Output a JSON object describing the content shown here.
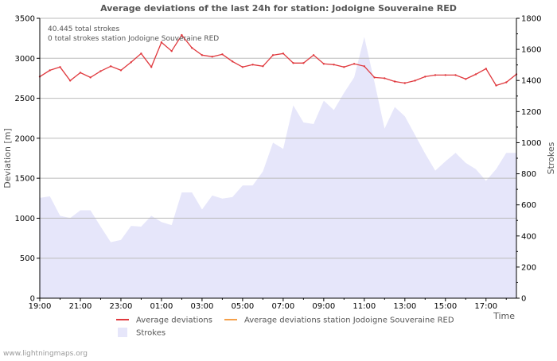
{
  "chart_data": {
    "type": "line",
    "title": "Average deviations of the last 24h for station: Jodoigne Souveraine RED",
    "annotations": [
      "40.445 total strokes",
      "0 total strokes station Jodoigne Souveraine RED"
    ],
    "xlabel": "Time",
    "ylabel_left": "Deviation  [m]",
    "ylabel_right": "Strokes",
    "ylim_left": [
      0,
      3500
    ],
    "ylim_right": [
      0,
      1800
    ],
    "yticks_left": [
      0,
      500,
      1000,
      1500,
      2000,
      2500,
      3000,
      3500
    ],
    "yticks_right": [
      0,
      200,
      400,
      600,
      800,
      1000,
      1200,
      1400,
      1600,
      1800
    ],
    "xlim": [
      0,
      23.5
    ],
    "xticks": [
      {
        "x": 0,
        "label": "19:00"
      },
      {
        "x": 2,
        "label": "21:00"
      },
      {
        "x": 4,
        "label": "23:00"
      },
      {
        "x": 6,
        "label": "01:00"
      },
      {
        "x": 8,
        "label": "03:00"
      },
      {
        "x": 10,
        "label": "05:00"
      },
      {
        "x": 12,
        "label": "07:00"
      },
      {
        "x": 14,
        "label": "09:00"
      },
      {
        "x": 16,
        "label": "11:00"
      },
      {
        "x": 18,
        "label": "13:00"
      },
      {
        "x": 20,
        "label": "15:00"
      },
      {
        "x": 22,
        "label": "17:00"
      }
    ],
    "grid": true,
    "series": [
      {
        "name": "Average deviations",
        "axis": "left",
        "kind": "line",
        "color": "#e0393e",
        "x": [
          0,
          0.5,
          1,
          1.5,
          2,
          2.5,
          3,
          3.5,
          4,
          4.5,
          5,
          5.5,
          6,
          6.5,
          7,
          7.5,
          8,
          8.5,
          9,
          9.5,
          10,
          10.5,
          11,
          11.5,
          12,
          12.5,
          13,
          13.5,
          14,
          14.5,
          15,
          15.5,
          16,
          16.5,
          17,
          17.5,
          18,
          18.5,
          19,
          19.5,
          20,
          20.5,
          21,
          21.5,
          22,
          22.5,
          23,
          23.5
        ],
        "values": [
          2770,
          2850,
          2890,
          2720,
          2820,
          2760,
          2840,
          2900,
          2850,
          2950,
          3060,
          2890,
          3200,
          3090,
          3290,
          3130,
          3040,
          3020,
          3050,
          2960,
          2890,
          2920,
          2900,
          3040,
          3060,
          2940,
          2940,
          3040,
          2930,
          2920,
          2890,
          2930,
          2900,
          2760,
          2750,
          2710,
          2690,
          2720,
          2770,
          2790,
          2790,
          2790,
          2740,
          2800,
          2870,
          2660,
          2700,
          2800
        ]
      },
      {
        "name": "Average deviations station Jodoigne Souveraine RED",
        "axis": "left",
        "kind": "line",
        "color": "#f5a04a",
        "x": [],
        "values": []
      },
      {
        "name": "Strokes",
        "axis": "right",
        "kind": "area",
        "color": "#e6e6fa",
        "x": [
          0,
          0.5,
          1,
          1.5,
          2,
          2.5,
          3,
          3.5,
          4,
          4.5,
          5,
          5.5,
          6,
          6.5,
          7,
          7.5,
          8,
          8.5,
          9,
          9.5,
          10,
          10.5,
          11,
          11.5,
          12,
          12.5,
          13,
          13.5,
          14,
          14.5,
          15,
          15.5,
          16,
          16.5,
          17,
          17.5,
          18,
          18.5,
          19,
          19.5,
          20,
          20.5,
          21,
          21.5,
          22,
          22.5,
          23,
          23.5
        ],
        "values": [
          645,
          655,
          530,
          515,
          565,
          565,
          460,
          360,
          375,
          465,
          460,
          530,
          490,
          470,
          680,
          680,
          570,
          660,
          640,
          650,
          725,
          725,
          815,
          1000,
          960,
          1240,
          1130,
          1120,
          1270,
          1210,
          1320,
          1420,
          1680,
          1390,
          1090,
          1230,
          1170,
          1050,
          930,
          820,
          880,
          935,
          870,
          830,
          755,
          830,
          935,
          935
        ]
      }
    ],
    "legend": {
      "placement": "bottom",
      "entries": [
        {
          "label": "Average deviations",
          "kind": "line",
          "color": "#e0393e"
        },
        {
          "label": "Average deviations station Jodoigne Souveraine RED",
          "kind": "line",
          "color": "#f5a04a"
        },
        {
          "label": "Strokes",
          "kind": "area",
          "color": "#e6e6fa"
        }
      ]
    }
  },
  "footer": {
    "credit": "www.lightningmaps.org"
  }
}
